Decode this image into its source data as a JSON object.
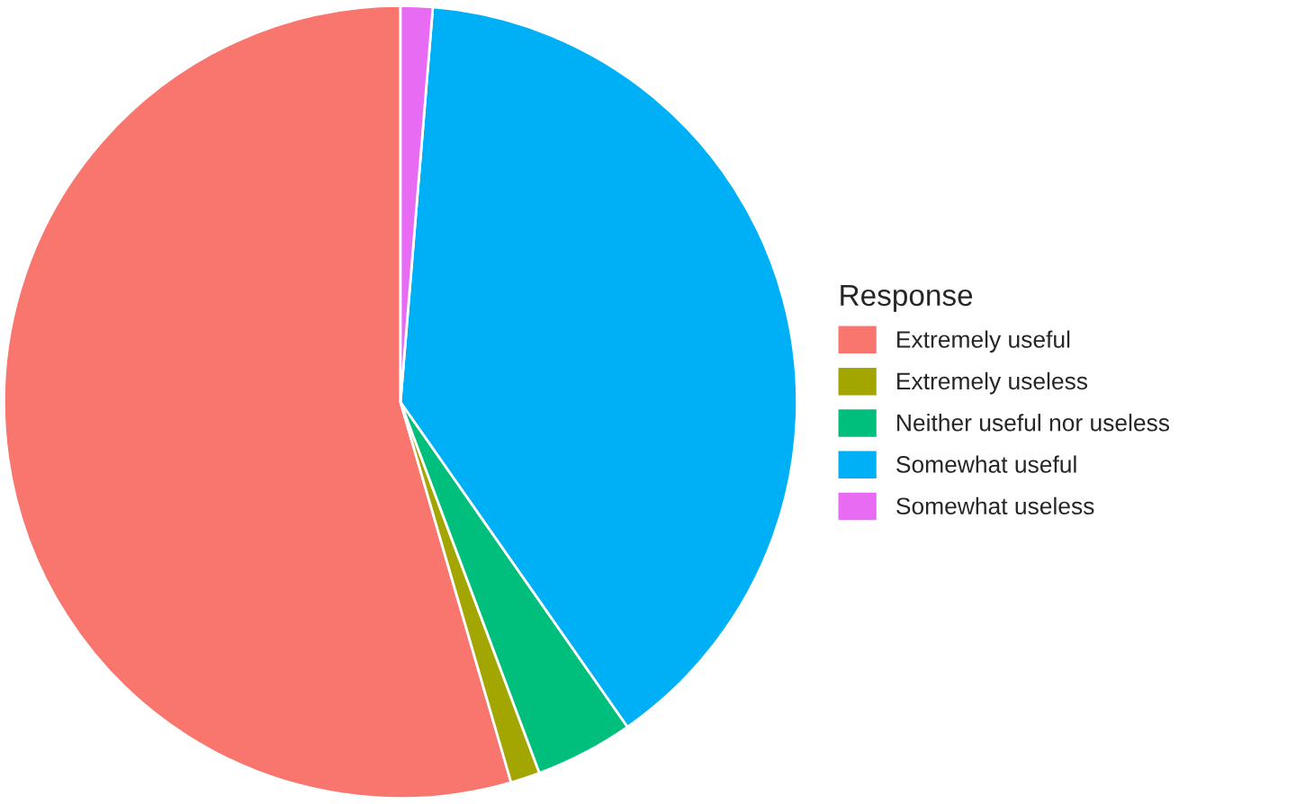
{
  "chart_data": {
    "type": "pie",
    "legend_title": "Response",
    "legend": "right",
    "categories": [
      "Extremely useful",
      "Extremely useless",
      "Neither useful nor useless",
      "Somewhat useful",
      "Somewhat useless"
    ],
    "values": [
      54.5,
      1.2,
      4.0,
      39.0,
      1.3
    ],
    "colors": [
      "#f8766d",
      "#a3a500",
      "#00bf7d",
      "#00b0f6",
      "#e76bf3"
    ]
  }
}
